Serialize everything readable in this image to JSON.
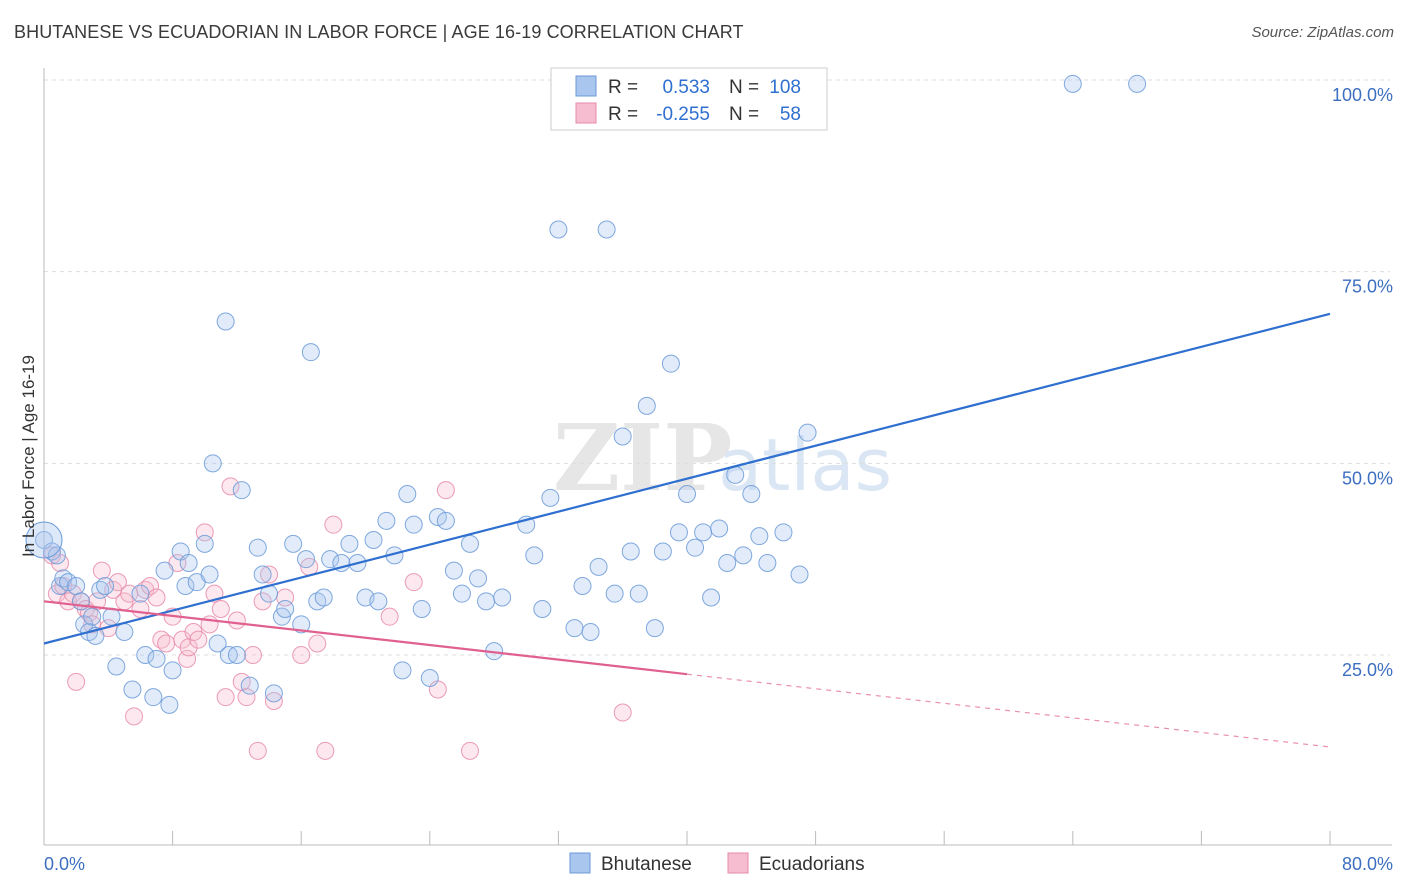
{
  "chart_data": {
    "type": "scatter",
    "title": "BHUTANESE VS ECUADORIAN IN LABOR FORCE | AGE 16-19 CORRELATION CHART",
    "source": "Source: ZipAtlas.com",
    "xlabel": "",
    "ylabel": "In Labor Force | Age 16-19",
    "xlim": [
      0,
      80
    ],
    "ylim": [
      0,
      105
    ],
    "x_tick_labels": [
      "0.0%",
      "80.0%"
    ],
    "y_ticks": [
      25,
      50,
      75,
      100
    ],
    "y_tick_labels": [
      "25.0%",
      "50.0%",
      "75.0%",
      "100.0%"
    ],
    "watermark": {
      "part1": "ZIP",
      "part2": "atlas"
    },
    "legend_stats": [
      {
        "r_label": "R =",
        "r_value": "0.533",
        "n_label": "N =",
        "n_value": "108"
      },
      {
        "r_label": "R =",
        "r_value": "-0.255",
        "n_label": "N =",
        "n_value": "58"
      }
    ],
    "series": [
      {
        "name": "Bhutanese",
        "color": "#7ba7e0",
        "line_color": "#2f6fd0",
        "trend": {
          "x0": 0,
          "y0": 26.5,
          "x1": 80,
          "y1": 69.5
        },
        "points": [
          [
            0,
            40
          ],
          [
            0.5,
            38.5
          ],
          [
            0.8,
            38
          ],
          [
            1,
            34
          ],
          [
            1.2,
            35
          ],
          [
            1.5,
            34.5
          ],
          [
            2,
            34
          ],
          [
            2.3,
            32
          ],
          [
            2.5,
            29
          ],
          [
            2.8,
            28
          ],
          [
            3,
            30
          ],
          [
            3.2,
            27.5
          ],
          [
            3.5,
            33.5
          ],
          [
            3.8,
            34
          ],
          [
            4.2,
            30
          ],
          [
            4.5,
            23.5
          ],
          [
            5,
            28
          ],
          [
            5.5,
            20.5
          ],
          [
            6,
            33
          ],
          [
            6.3,
            25
          ],
          [
            6.8,
            19.5
          ],
          [
            7,
            24.5
          ],
          [
            7.5,
            36
          ],
          [
            7.8,
            18.5
          ],
          [
            8,
            23
          ],
          [
            8.5,
            38.5
          ],
          [
            8.8,
            34
          ],
          [
            9,
            37
          ],
          [
            9.5,
            34.5
          ],
          [
            10,
            39.5
          ],
          [
            10.3,
            35.5
          ],
          [
            10.5,
            50
          ],
          [
            10.8,
            26.5
          ],
          [
            11.3,
            68.5
          ],
          [
            11.5,
            25
          ],
          [
            12,
            25
          ],
          [
            12.3,
            46.5
          ],
          [
            12.8,
            21
          ],
          [
            13.3,
            39
          ],
          [
            13.6,
            35.5
          ],
          [
            14,
            33
          ],
          [
            14.3,
            20
          ],
          [
            14.8,
            30
          ],
          [
            15,
            31
          ],
          [
            15.5,
            39.5
          ],
          [
            16,
            29
          ],
          [
            16.3,
            37.5
          ],
          [
            16.6,
            64.5
          ],
          [
            17,
            32
          ],
          [
            17.4,
            32.5
          ],
          [
            17.8,
            37.5
          ],
          [
            18.5,
            37
          ],
          [
            19,
            39.5
          ],
          [
            19.5,
            37
          ],
          [
            20,
            32.5
          ],
          [
            20.5,
            40
          ],
          [
            20.8,
            32
          ],
          [
            21.3,
            42.5
          ],
          [
            21.8,
            38
          ],
          [
            22.3,
            23
          ],
          [
            22.6,
            46
          ],
          [
            23,
            42
          ],
          [
            23.5,
            31
          ],
          [
            24,
            22
          ],
          [
            24.5,
            43
          ],
          [
            25,
            42.5
          ],
          [
            25.5,
            36
          ],
          [
            26,
            33
          ],
          [
            26.5,
            39.5
          ],
          [
            27,
            35
          ],
          [
            27.5,
            32
          ],
          [
            28,
            25.5
          ],
          [
            28.5,
            32.5
          ],
          [
            30,
            42
          ],
          [
            30.5,
            38
          ],
          [
            31,
            31
          ],
          [
            31.5,
            45.5
          ],
          [
            32,
            80.5
          ],
          [
            33,
            28.5
          ],
          [
            33.5,
            34
          ],
          [
            34,
            28
          ],
          [
            34.5,
            36.5
          ],
          [
            35,
            80.5
          ],
          [
            35.5,
            33
          ],
          [
            36,
            53.5
          ],
          [
            36.5,
            38.5
          ],
          [
            37,
            33
          ],
          [
            37.5,
            57.5
          ],
          [
            38,
            28.5
          ],
          [
            38.5,
            38.5
          ],
          [
            39,
            63
          ],
          [
            39.5,
            41
          ],
          [
            40,
            46
          ],
          [
            40.5,
            39
          ],
          [
            41,
            41
          ],
          [
            41.5,
            32.5
          ],
          [
            42,
            41.5
          ],
          [
            42.5,
            37
          ],
          [
            43,
            48.5
          ],
          [
            43.5,
            38
          ],
          [
            44,
            46
          ],
          [
            44.5,
            40.5
          ],
          [
            45,
            37
          ],
          [
            46,
            41
          ],
          [
            47,
            35.5
          ],
          [
            47.5,
            54
          ],
          [
            64,
            99.5
          ],
          [
            68,
            99.5
          ]
        ]
      },
      {
        "name": "Ecuadorians",
        "color": "#f2a6c0",
        "line_color": "#e0608f",
        "trend": {
          "x0": 0,
          "y0": 32,
          "x1": 40,
          "y1": 22.5,
          "x_dash_end": 80,
          "y_dash_end": 13
        },
        "points": [
          [
            0.5,
            38
          ],
          [
            0.8,
            33
          ],
          [
            1,
            37
          ],
          [
            1.2,
            34
          ],
          [
            1.5,
            32
          ],
          [
            1.8,
            33
          ],
          [
            2,
            21.5
          ],
          [
            2.3,
            32
          ],
          [
            2.6,
            31
          ],
          [
            2.8,
            30.5
          ],
          [
            3,
            29
          ],
          [
            3.3,
            32
          ],
          [
            3.6,
            36
          ],
          [
            4,
            28.5
          ],
          [
            4.3,
            33.5
          ],
          [
            4.6,
            34.5
          ],
          [
            5,
            32
          ],
          [
            5.3,
            33
          ],
          [
            5.6,
            17
          ],
          [
            6,
            31
          ],
          [
            6.3,
            33.5
          ],
          [
            6.6,
            34
          ],
          [
            7,
            32.5
          ],
          [
            7.3,
            27
          ],
          [
            7.6,
            26.5
          ],
          [
            8,
            30
          ],
          [
            8.3,
            37
          ],
          [
            8.6,
            27
          ],
          [
            8.9,
            24.5
          ],
          [
            9,
            26
          ],
          [
            9.3,
            28
          ],
          [
            9.6,
            27
          ],
          [
            10,
            41
          ],
          [
            10.3,
            29
          ],
          [
            10.6,
            33
          ],
          [
            11,
            31
          ],
          [
            11.3,
            19.5
          ],
          [
            11.6,
            47
          ],
          [
            12,
            29.5
          ],
          [
            12.3,
            21.5
          ],
          [
            12.6,
            19.5
          ],
          [
            13,
            25
          ],
          [
            13.3,
            12.5
          ],
          [
            13.6,
            32
          ],
          [
            14,
            35.5
          ],
          [
            14.3,
            19
          ],
          [
            15,
            32.5
          ],
          [
            16,
            25
          ],
          [
            16.5,
            36.5
          ],
          [
            17,
            26.5
          ],
          [
            17.5,
            12.5
          ],
          [
            18,
            42
          ],
          [
            21.5,
            30
          ],
          [
            23,
            34.5
          ],
          [
            24.5,
            20.5
          ],
          [
            25,
            46.5
          ],
          [
            26.5,
            12.5
          ],
          [
            36,
            17.5
          ]
        ]
      }
    ]
  }
}
